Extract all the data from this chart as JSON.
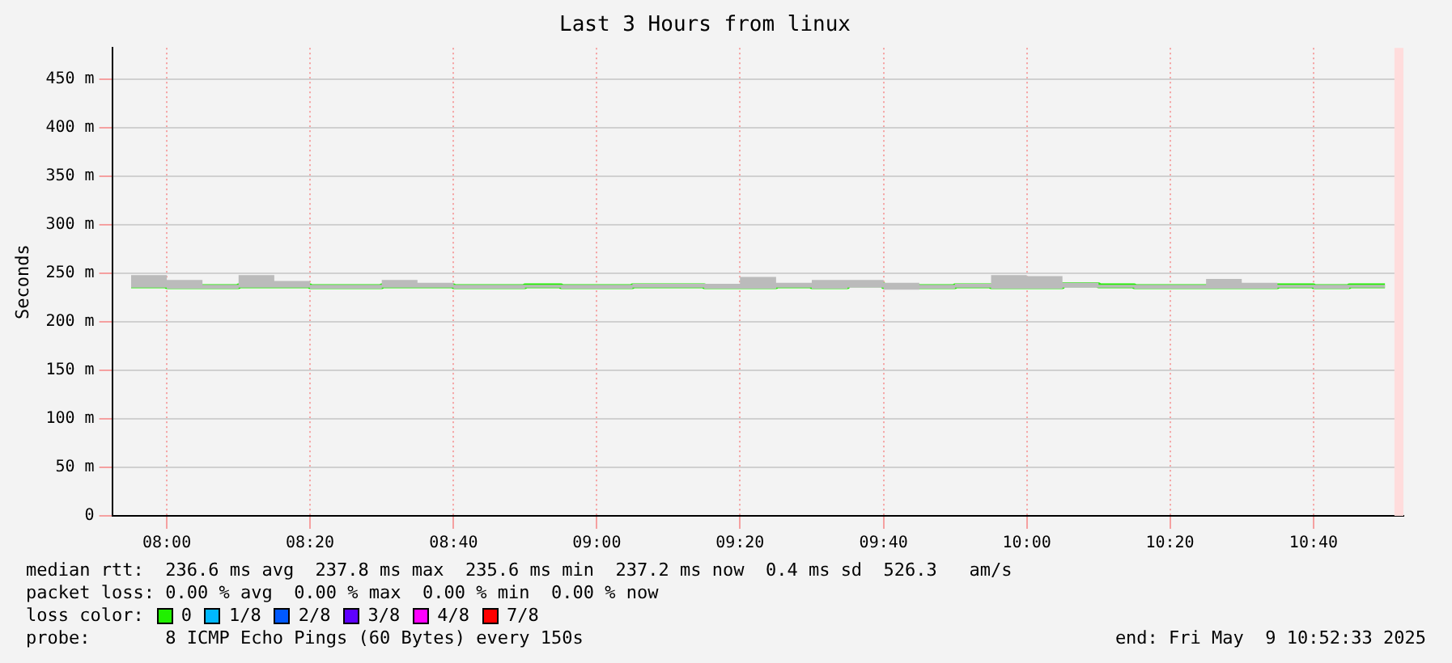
{
  "chart_data": {
    "type": "step",
    "title": "Last 3 Hours from linux",
    "ylabel": "Seconds",
    "legend_title": "loss color:",
    "x": [
      7.917,
      8.0,
      8.083,
      8.167,
      8.25,
      8.333,
      8.417,
      8.5,
      8.583,
      8.667,
      8.75,
      8.833,
      8.917,
      9.0,
      9.083,
      9.167,
      9.25,
      9.333,
      9.417,
      9.5,
      9.583,
      9.667,
      9.75,
      9.833,
      9.917,
      10.0,
      10.083,
      10.167,
      10.25,
      10.333,
      10.417,
      10.5,
      10.583,
      10.667,
      10.75,
      10.833
    ],
    "series": [
      {
        "name": "0",
        "color": "#20f000",
        "values": [
          237,
          237,
          236,
          236,
          237,
          237,
          236,
          236,
          237,
          237,
          236,
          236,
          237,
          236,
          236,
          237,
          237,
          236,
          236,
          237,
          236,
          238,
          236,
          236,
          237,
          236,
          236,
          238,
          237,
          236,
          236,
          236,
          236,
          237,
          236,
          237
        ],
        "lower": [
          235,
          235,
          234,
          234,
          235,
          235,
          234,
          234,
          235,
          235,
          234,
          234,
          235,
          234,
          234,
          235,
          235,
          234,
          234,
          235,
          234,
          235,
          233,
          234,
          235,
          234,
          234,
          235,
          235,
          234,
          234,
          234,
          234,
          235,
          234,
          235
        ],
        "upper": [
          239,
          248,
          243,
          238,
          248,
          242,
          238,
          238,
          243,
          240,
          238,
          238,
          238,
          238,
          238,
          239,
          239,
          239,
          246,
          240,
          243,
          243,
          240,
          238,
          239,
          248,
          247,
          240,
          238,
          238,
          238,
          244,
          240,
          238,
          238,
          238
        ]
      },
      {
        "name": "1/8",
        "color": "#00b8ff",
        "values": [
          null,
          null,
          null,
          null,
          null,
          null,
          null,
          null,
          null,
          null,
          null,
          null,
          null,
          null,
          null,
          null,
          null,
          null,
          null,
          null,
          null,
          null,
          null,
          null,
          null,
          null,
          null,
          null,
          null,
          null,
          null,
          null,
          null,
          null,
          null,
          null
        ]
      },
      {
        "name": "2/8",
        "color": "#0059ff",
        "values": [
          null,
          null,
          null,
          null,
          null,
          null,
          null,
          null,
          null,
          null,
          null,
          null,
          null,
          null,
          null,
          null,
          null,
          null,
          null,
          null,
          null,
          null,
          null,
          null,
          null,
          null,
          null,
          null,
          null,
          null,
          null,
          null,
          null,
          null,
          null,
          null
        ]
      },
      {
        "name": "3/8",
        "color": "#5e00ff",
        "values": [
          null,
          null,
          null,
          null,
          null,
          null,
          null,
          null,
          null,
          null,
          null,
          null,
          null,
          null,
          null,
          null,
          null,
          null,
          null,
          null,
          null,
          null,
          null,
          null,
          null,
          null,
          null,
          null,
          null,
          null,
          null,
          null,
          null,
          null,
          null,
          null
        ]
      },
      {
        "name": "4/8",
        "color": "#ff00ff",
        "values": [
          null,
          null,
          null,
          null,
          null,
          null,
          null,
          null,
          null,
          null,
          null,
          null,
          null,
          null,
          null,
          null,
          null,
          null,
          null,
          null,
          null,
          null,
          null,
          null,
          null,
          null,
          null,
          null,
          null,
          null,
          null,
          null,
          null,
          null,
          null,
          null
        ]
      },
      {
        "name": "7/8",
        "color": "#ff0000",
        "values": [
          null,
          null,
          null,
          null,
          null,
          null,
          null,
          null,
          null,
          null,
          null,
          null,
          null,
          null,
          null,
          null,
          null,
          null,
          null,
          null,
          null,
          null,
          null,
          null,
          null,
          null,
          null,
          null,
          null,
          null,
          null,
          null,
          null,
          null,
          null,
          null
        ]
      }
    ],
    "xlim": [
      7.873,
      10.876
    ],
    "xticks": [
      {
        "value": 8,
        "label": "08:00"
      },
      {
        "value": 8.333,
        "label": "08:20"
      },
      {
        "value": 8.667,
        "label": "08:40"
      },
      {
        "value": 9,
        "label": "09:00"
      },
      {
        "value": 9.333,
        "label": "09:20"
      },
      {
        "value": 9.667,
        "label": "09:40"
      },
      {
        "value": 10,
        "label": "10:00"
      },
      {
        "value": 10.333,
        "label": "10:20"
      },
      {
        "value": 10.667,
        "label": "10:40"
      }
    ],
    "ylim": [
      0,
      482
    ],
    "yticks": [
      0,
      {
        "value": 50,
        "label": "50 m"
      },
      {
        "value": 100,
        "label": "100 m"
      },
      {
        "value": 150,
        "label": "150 m"
      },
      {
        "value": 200,
        "label": "200 m"
      },
      {
        "value": 250,
        "label": "250 m"
      },
      {
        "value": 300,
        "label": "300 m"
      },
      {
        "value": 350,
        "label": "350 m"
      },
      {
        "value": 400,
        "label": "400 m"
      },
      {
        "value": 450,
        "label": "450 m"
      }
    ],
    "bands": [
      {
        "axis": "x",
        "from": 10.855,
        "to": 10.876,
        "color": "#ffdcdc"
      }
    ],
    "grid": true,
    "legend": "bottom",
    "marker": "none",
    "line_style": "solid",
    "annotations": [
      "median rtt:  236.6 ms avg  237.8 ms max  235.6 ms min  237.2 ms now  0.4 ms sd  526.3   am/s",
      "packet loss: 0.00 % avg  0.00 % max  0.00 % min  0.00 % now",
      "probe:       8 ICMP Echo Pings (60 Bytes) every 150s",
      "end: Fri May  9 10:52:33 2025"
    ]
  }
}
